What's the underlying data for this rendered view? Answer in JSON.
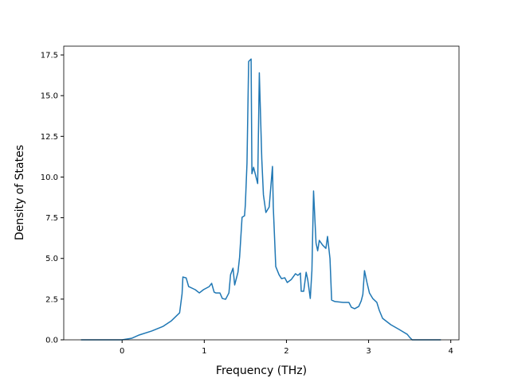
{
  "chart_data": {
    "type": "line",
    "x_label": "Frequency (THz)",
    "y_label": "Density of States",
    "x": [
      -0.5,
      -0.13,
      0,
      0.12,
      0.21,
      0.36,
      0.5,
      0.6,
      0.7,
      0.73,
      0.74,
      0.78,
      0.81,
      0.89,
      0.94,
      0.99,
      1.06,
      1.09,
      1.12,
      1.14,
      1.19,
      1.22,
      1.26,
      1.3,
      1.32,
      1.35,
      1.37,
      1.41,
      1.43,
      1.46,
      1.49,
      1.5,
      1.52,
      1.54,
      1.57,
      1.58,
      1.6,
      1.62,
      1.65,
      1.67,
      1.7,
      1.72,
      1.75,
      1.79,
      1.83,
      1.84,
      1.87,
      1.91,
      1.94,
      1.98,
      2.01,
      2.06,
      2.11,
      2.14,
      2.17,
      2.18,
      2.21,
      2.24,
      2.26,
      2.29,
      2.31,
      2.33,
      2.36,
      2.38,
      2.4,
      2.44,
      2.48,
      2.5,
      2.53,
      2.55,
      2.59,
      2.69,
      2.76,
      2.79,
      2.83,
      2.88,
      2.91,
      2.93,
      2.95,
      2.98,
      3.01,
      3.05,
      3.1,
      3.13,
      3.17,
      3.27,
      3.37,
      3.47,
      3.5,
      3.53,
      3.88
    ],
    "series": [
      {
        "color": "#1f77b4",
        "values": [
          0,
          0,
          0,
          0.1,
          0.3,
          0.54,
          0.83,
          1.17,
          1.66,
          2.83,
          3.86,
          3.8,
          3.27,
          3.08,
          2.88,
          3.08,
          3.27,
          3.47,
          2.93,
          2.88,
          2.88,
          2.54,
          2.49,
          2.88,
          4.0,
          4.4,
          3.37,
          4.15,
          5.08,
          7.53,
          7.62,
          8.3,
          10.85,
          17.1,
          17.25,
          10.2,
          10.6,
          10.2,
          9.6,
          16.4,
          11.1,
          8.9,
          7.82,
          8.16,
          10.65,
          8.16,
          4.5,
          4.0,
          3.76,
          3.81,
          3.52,
          3.71,
          4.06,
          3.96,
          4.1,
          2.98,
          2.98,
          4.15,
          3.67,
          2.54,
          4.25,
          9.14,
          5.96,
          5.47,
          6.11,
          5.82,
          5.62,
          6.35,
          4.99,
          2.44,
          2.35,
          2.3,
          2.3,
          2.0,
          1.91,
          2.05,
          2.39,
          2.79,
          4.25,
          3.52,
          2.88,
          2.54,
          2.3,
          1.81,
          1.32,
          0.93,
          0.64,
          0.34,
          0.15,
          0,
          0
        ]
      }
    ],
    "xlim": [
      -0.71,
      4.1
    ],
    "xticks": [
      0,
      1,
      2,
      3,
      4
    ],
    "ylim": [
      0,
      18.04
    ],
    "yticks": [
      {
        "value": 0,
        "label": "0.0"
      },
      2.5,
      {
        "value": 5,
        "label": "5.0"
      },
      7.5,
      {
        "value": 10,
        "label": "10.0"
      },
      12.5,
      {
        "value": 15,
        "label": "15.0"
      },
      17.5
    ],
    "grid": false
  }
}
